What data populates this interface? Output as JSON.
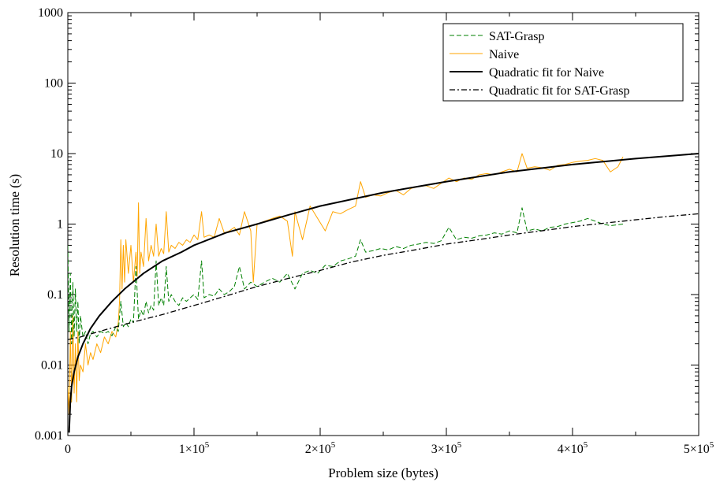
{
  "chart_data": {
    "type": "line",
    "title": "",
    "xlabel": "Problem size (bytes)",
    "ylabel": "Resolution time (s)",
    "xlim": [
      0,
      500000
    ],
    "ylim": [
      0.001,
      1000
    ],
    "yscale": "log",
    "grid": false,
    "legend_position": "top-right",
    "x_tick_labels": [
      {
        "value": 0,
        "base": "0",
        "exp": ""
      },
      {
        "value": 100000,
        "base": "1×10",
        "exp": "5"
      },
      {
        "value": 200000,
        "base": "2×10",
        "exp": "5"
      },
      {
        "value": 300000,
        "base": "3×10",
        "exp": "5"
      },
      {
        "value": 400000,
        "base": "4×10",
        "exp": "5"
      },
      {
        "value": 500000,
        "base": "5×10",
        "exp": "5"
      }
    ],
    "y_tick_labels": [
      {
        "value": 0.001,
        "label": "0.001"
      },
      {
        "value": 0.01,
        "label": "0.01"
      },
      {
        "value": 0.1,
        "label": "0.1"
      },
      {
        "value": 1,
        "label": "1"
      },
      {
        "value": 10,
        "label": "10"
      },
      {
        "value": 100,
        "label": "100"
      },
      {
        "value": 1000,
        "label": "1000"
      }
    ],
    "series": [
      {
        "name": "SAT-Grasp",
        "color": "#008000",
        "style": "dashed",
        "points": [
          [
            0,
            0.5
          ],
          [
            1000,
            0.03
          ],
          [
            2000,
            0.2
          ],
          [
            3000,
            0.02
          ],
          [
            4000,
            0.15
          ],
          [
            5000,
            0.025
          ],
          [
            6000,
            0.12
          ],
          [
            7000,
            0.03
          ],
          [
            8000,
            0.08
          ],
          [
            9000,
            0.02
          ],
          [
            10000,
            0.05
          ],
          [
            12000,
            0.025
          ],
          [
            14000,
            0.03
          ],
          [
            16000,
            0.02
          ],
          [
            18000,
            0.028
          ],
          [
            20000,
            0.03
          ],
          [
            23000,
            0.025
          ],
          [
            26000,
            0.03
          ],
          [
            29000,
            0.028
          ],
          [
            32000,
            0.03
          ],
          [
            35000,
            0.026
          ],
          [
            38000,
            0.035
          ],
          [
            40000,
            0.03
          ],
          [
            42000,
            0.08
          ],
          [
            44000,
            0.035
          ],
          [
            46000,
            0.04
          ],
          [
            48000,
            0.035
          ],
          [
            50000,
            0.045
          ],
          [
            52000,
            0.04
          ],
          [
            54000,
            0.25
          ],
          [
            56000,
            0.045
          ],
          [
            58000,
            0.06
          ],
          [
            60000,
            0.05
          ],
          [
            62000,
            0.08
          ],
          [
            64000,
            0.055
          ],
          [
            66000,
            0.07
          ],
          [
            68000,
            0.06
          ],
          [
            70000,
            0.3
          ],
          [
            72000,
            0.07
          ],
          [
            74000,
            0.09
          ],
          [
            76000,
            0.07
          ],
          [
            78000,
            0.25
          ],
          [
            80000,
            0.08
          ],
          [
            82000,
            0.1
          ],
          [
            85000,
            0.08
          ],
          [
            88000,
            0.07
          ],
          [
            91000,
            0.09
          ],
          [
            94000,
            0.08
          ],
          [
            97000,
            0.09
          ],
          [
            100000,
            0.1
          ],
          [
            103000,
            0.085
          ],
          [
            106000,
            0.3
          ],
          [
            108000,
            0.09
          ],
          [
            112000,
            0.1
          ],
          [
            116000,
            0.095
          ],
          [
            120000,
            0.12
          ],
          [
            124000,
            0.1
          ],
          [
            128000,
            0.11
          ],
          [
            132000,
            0.13
          ],
          [
            136000,
            0.25
          ],
          [
            140000,
            0.12
          ],
          [
            145000,
            0.15
          ],
          [
            150000,
            0.13
          ],
          [
            156000,
            0.15
          ],
          [
            162000,
            0.17
          ],
          [
            168000,
            0.15
          ],
          [
            174000,
            0.2
          ],
          [
            180000,
            0.12
          ],
          [
            186000,
            0.2
          ],
          [
            192000,
            0.22
          ],
          [
            198000,
            0.2
          ],
          [
            204000,
            0.26
          ],
          [
            210000,
            0.25
          ],
          [
            216000,
            0.3
          ],
          [
            222000,
            0.32
          ],
          [
            228000,
            0.35
          ],
          [
            232000,
            0.6
          ],
          [
            236000,
            0.4
          ],
          [
            242000,
            0.42
          ],
          [
            248000,
            0.45
          ],
          [
            254000,
            0.43
          ],
          [
            260000,
            0.48
          ],
          [
            266000,
            0.45
          ],
          [
            272000,
            0.5
          ],
          [
            278000,
            0.52
          ],
          [
            284000,
            0.55
          ],
          [
            290000,
            0.53
          ],
          [
            296000,
            0.58
          ],
          [
            302000,
            0.9
          ],
          [
            308000,
            0.6
          ],
          [
            314000,
            0.65
          ],
          [
            320000,
            0.63
          ],
          [
            326000,
            0.68
          ],
          [
            332000,
            0.7
          ],
          [
            338000,
            0.75
          ],
          [
            344000,
            0.72
          ],
          [
            350000,
            0.8
          ],
          [
            356000,
            0.75
          ],
          [
            360000,
            1.7
          ],
          [
            364000,
            0.8
          ],
          [
            370000,
            0.85
          ],
          [
            376000,
            0.8
          ],
          [
            382000,
            0.9
          ],
          [
            388000,
            0.92
          ],
          [
            394000,
            1.0
          ],
          [
            400000,
            1.05
          ],
          [
            406000,
            1.1
          ],
          [
            412000,
            1.2
          ],
          [
            418000,
            1.1
          ],
          [
            424000,
            1.0
          ],
          [
            430000,
            0.95
          ],
          [
            436000,
            0.98
          ],
          [
            440000,
            1.0
          ]
        ]
      },
      {
        "name": "Naive",
        "color": "#ffa500",
        "style": "solid",
        "points": [
          [
            0,
            0.005
          ],
          [
            1000,
            0.002
          ],
          [
            2000,
            0.03
          ],
          [
            3000,
            0.003
          ],
          [
            4000,
            0.05
          ],
          [
            5000,
            0.004
          ],
          [
            6000,
            0.02
          ],
          [
            7000,
            0.003
          ],
          [
            8000,
            0.03
          ],
          [
            9000,
            0.006
          ],
          [
            10000,
            0.01
          ],
          [
            12000,
            0.008
          ],
          [
            14000,
            0.02
          ],
          [
            16000,
            0.01
          ],
          [
            18000,
            0.015
          ],
          [
            20000,
            0.012
          ],
          [
            23000,
            0.02
          ],
          [
            26000,
            0.015
          ],
          [
            29000,
            0.025
          ],
          [
            32000,
            0.02
          ],
          [
            35000,
            0.03
          ],
          [
            38000,
            0.025
          ],
          [
            40000,
            0.04
          ],
          [
            41000,
            0.08
          ],
          [
            42000,
            0.6
          ],
          [
            43000,
            0.12
          ],
          [
            44000,
            0.5
          ],
          [
            45000,
            0.15
          ],
          [
            46000,
            0.6
          ],
          [
            48000,
            0.2
          ],
          [
            50000,
            0.5
          ],
          [
            52000,
            0.15
          ],
          [
            54000,
            0.4
          ],
          [
            55000,
            0.18
          ],
          [
            56000,
            2.0
          ],
          [
            57000,
            0.2
          ],
          [
            58000,
            0.4
          ],
          [
            60000,
            0.25
          ],
          [
            62000,
            1.2
          ],
          [
            64000,
            0.3
          ],
          [
            66000,
            0.5
          ],
          [
            68000,
            0.35
          ],
          [
            70000,
            1.0
          ],
          [
            72000,
            0.35
          ],
          [
            74000,
            0.45
          ],
          [
            76000,
            0.38
          ],
          [
            78000,
            1.5
          ],
          [
            80000,
            0.4
          ],
          [
            82000,
            0.5
          ],
          [
            85000,
            0.45
          ],
          [
            88000,
            0.55
          ],
          [
            91000,
            0.5
          ],
          [
            94000,
            0.6
          ],
          [
            97000,
            0.55
          ],
          [
            100000,
            0.7
          ],
          [
            103000,
            0.6
          ],
          [
            106000,
            1.5
          ],
          [
            108000,
            0.65
          ],
          [
            112000,
            0.7
          ],
          [
            116000,
            0.65
          ],
          [
            120000,
            1.2
          ],
          [
            124000,
            0.75
          ],
          [
            128000,
            0.8
          ],
          [
            132000,
            0.9
          ],
          [
            136000,
            0.7
          ],
          [
            140000,
            1.5
          ],
          [
            145000,
            0.8
          ],
          [
            147000,
            0.15
          ],
          [
            150000,
            1.0
          ],
          [
            156000,
            1.1
          ],
          [
            162000,
            1.2
          ],
          [
            168000,
            1.3
          ],
          [
            174000,
            1.1
          ],
          [
            178000,
            0.35
          ],
          [
            180000,
            1.5
          ],
          [
            186000,
            0.6
          ],
          [
            192000,
            1.8
          ],
          [
            198000,
            1.2
          ],
          [
            204000,
            0.8
          ],
          [
            210000,
            1.5
          ],
          [
            216000,
            1.4
          ],
          [
            222000,
            1.6
          ],
          [
            228000,
            1.8
          ],
          [
            232000,
            4.0
          ],
          [
            236000,
            2.4
          ],
          [
            242000,
            2.6
          ],
          [
            248000,
            2.5
          ],
          [
            254000,
            2.8
          ],
          [
            260000,
            3.0
          ],
          [
            266000,
            2.6
          ],
          [
            272000,
            3.2
          ],
          [
            278000,
            3.4
          ],
          [
            284000,
            3.5
          ],
          [
            290000,
            3.2
          ],
          [
            296000,
            3.8
          ],
          [
            302000,
            4.5
          ],
          [
            308000,
            4.0
          ],
          [
            314000,
            4.5
          ],
          [
            320000,
            4.3
          ],
          [
            326000,
            5.0
          ],
          [
            332000,
            5.2
          ],
          [
            338000,
            5.0
          ],
          [
            344000,
            5.5
          ],
          [
            350000,
            6.0
          ],
          [
            356000,
            5.5
          ],
          [
            360000,
            10.0
          ],
          [
            364000,
            6.2
          ],
          [
            370000,
            6.5
          ],
          [
            376000,
            6.3
          ],
          [
            382000,
            5.8
          ],
          [
            388000,
            6.8
          ],
          [
            394000,
            7.0
          ],
          [
            400000,
            7.5
          ],
          [
            406000,
            7.8
          ],
          [
            412000,
            8.0
          ],
          [
            418000,
            8.5
          ],
          [
            424000,
            8.0
          ],
          [
            430000,
            5.5
          ],
          [
            436000,
            6.5
          ],
          [
            440000,
            9.0
          ]
        ]
      },
      {
        "name": "Quadratic fit for Naive",
        "color": "#000000",
        "style": "solid",
        "points": [
          [
            1000,
            0.0011
          ],
          [
            2000,
            0.003
          ],
          [
            3000,
            0.005
          ],
          [
            5000,
            0.008
          ],
          [
            8000,
            0.013
          ],
          [
            12000,
            0.02
          ],
          [
            18000,
            0.033
          ],
          [
            25000,
            0.05
          ],
          [
            35000,
            0.08
          ],
          [
            45000,
            0.12
          ],
          [
            60000,
            0.2
          ],
          [
            75000,
            0.3
          ],
          [
            90000,
            0.4
          ],
          [
            100000,
            0.5
          ],
          [
            125000,
            0.75
          ],
          [
            150000,
            1.0
          ],
          [
            175000,
            1.35
          ],
          [
            200000,
            1.8
          ],
          [
            250000,
            2.8
          ],
          [
            300000,
            4.0
          ],
          [
            350000,
            5.5
          ],
          [
            400000,
            7.0
          ],
          [
            450000,
            8.5
          ],
          [
            500000,
            10.0
          ]
        ]
      },
      {
        "name": "Quadratic fit for SAT-Grasp",
        "color": "#000000",
        "style": "dashdot",
        "points": [
          [
            0,
            0.023
          ],
          [
            10000,
            0.025
          ],
          [
            25000,
            0.03
          ],
          [
            50000,
            0.04
          ],
          [
            75000,
            0.052
          ],
          [
            100000,
            0.07
          ],
          [
            125000,
            0.095
          ],
          [
            150000,
            0.13
          ],
          [
            175000,
            0.17
          ],
          [
            200000,
            0.22
          ],
          [
            225000,
            0.29
          ],
          [
            250000,
            0.36
          ],
          [
            275000,
            0.43
          ],
          [
            300000,
            0.52
          ],
          [
            325000,
            0.6
          ],
          [
            350000,
            0.7
          ],
          [
            375000,
            0.8
          ],
          [
            400000,
            0.92
          ],
          [
            425000,
            1.03
          ],
          [
            450000,
            1.15
          ],
          [
            475000,
            1.28
          ],
          [
            500000,
            1.4
          ]
        ]
      }
    ]
  }
}
